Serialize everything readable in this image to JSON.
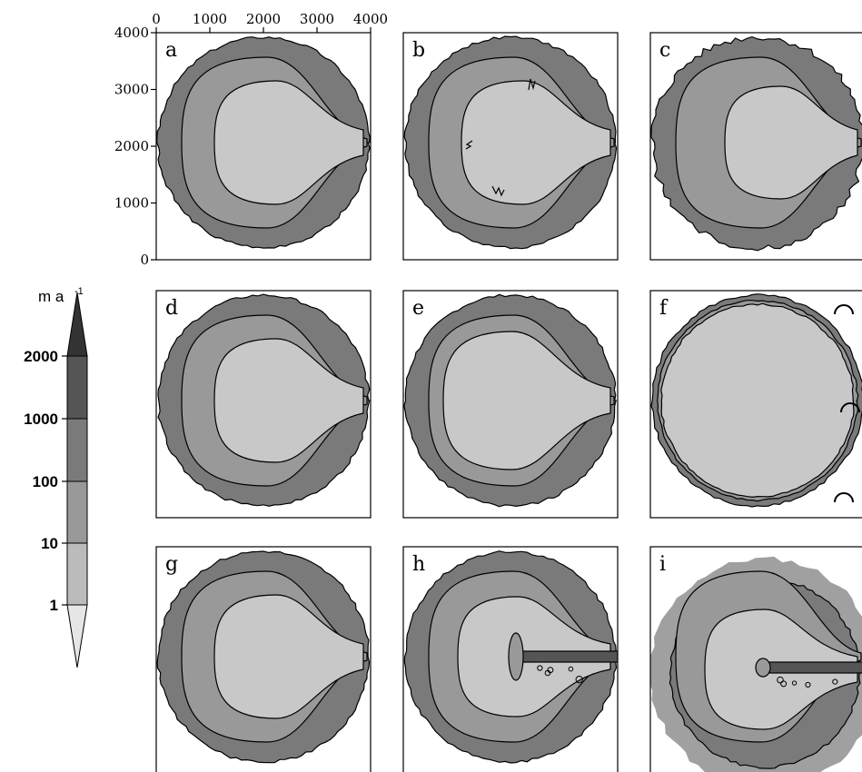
{
  "axes": {
    "x_ticks": [
      "0",
      "1000",
      "2000",
      "3000",
      "4000"
    ],
    "y_ticks": [
      "4000",
      "3000",
      "2000",
      "1000",
      "0"
    ]
  },
  "colorbar": {
    "unit": "m a",
    "unit_superscript": "-1",
    "labels": [
      "2000",
      "1000",
      "100",
      "10",
      "1"
    ],
    "colors": [
      "#333333",
      "#555555",
      "#7a7a7a",
      "#999999",
      "#bbbbbb",
      "#e6e6e6"
    ]
  },
  "panels": [
    {
      "letter": "a",
      "style": "pointed"
    },
    {
      "letter": "b",
      "style": "noisy-inner"
    },
    {
      "letter": "c",
      "style": "rough-edge"
    },
    {
      "letter": "d",
      "style": "pointed"
    },
    {
      "letter": "e",
      "style": "blunt"
    },
    {
      "letter": "f",
      "style": "thin-rim"
    },
    {
      "letter": "g",
      "style": "pointed"
    },
    {
      "letter": "h",
      "style": "stream"
    },
    {
      "letter": "i",
      "style": "speckled"
    }
  ],
  "colors": {
    "outer": "#7a7a7a",
    "middle": "#999999",
    "inner": "#c8c8c8",
    "outer_halo": "#a0a0a0",
    "stream": "#555555"
  }
}
